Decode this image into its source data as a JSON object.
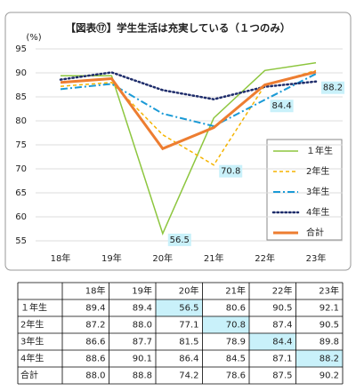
{
  "chart_data": {
    "type": "line",
    "title": "【図表⑰】学生生活は充実している（１つのみ）",
    "y_label": "(%)",
    "categories": [
      "18年",
      "19年",
      "20年",
      "21年",
      "22年",
      "23年"
    ],
    "ylim": [
      53,
      95
    ],
    "yticks": [
      55,
      60,
      65,
      70,
      75,
      80,
      85,
      90,
      95
    ],
    "grid": true,
    "legend": "right",
    "series": [
      {
        "name": "１年生",
        "color": "#8dc63f",
        "dash": "solid",
        "width": 1.5,
        "values": [
          89.4,
          89.4,
          56.5,
          80.6,
          90.5,
          92.1
        ],
        "value_labels": [
          null,
          null,
          "56.5",
          null,
          null,
          null
        ]
      },
      {
        "name": "2年生",
        "color": "#f5b400",
        "dash": "dashed",
        "width": 1.5,
        "values": [
          87.2,
          88.0,
          77.1,
          70.8,
          87.4,
          90.5
        ],
        "value_labels": [
          null,
          null,
          null,
          "70.8",
          null,
          null
        ]
      },
      {
        "name": "3年生",
        "color": "#1a9ad6",
        "dash": "dashdot",
        "width": 2,
        "values": [
          86.6,
          87.7,
          81.5,
          78.9,
          84.4,
          89.8
        ],
        "value_labels": [
          null,
          null,
          null,
          null,
          "84.4",
          null
        ]
      },
      {
        "name": "4年生",
        "color": "#1f2d6b",
        "dash": "dotted",
        "width": 2.5,
        "values": [
          88.6,
          90.1,
          86.4,
          84.5,
          87.1,
          88.2
        ],
        "value_labels": [
          null,
          null,
          null,
          null,
          null,
          "88.2"
        ]
      },
      {
        "name": "合計",
        "color": "#ed7d31",
        "dash": "solid",
        "width": 3,
        "values": [
          88.0,
          88.8,
          74.2,
          78.6,
          87.5,
          90.2
        ],
        "value_labels": [
          null,
          null,
          null,
          null,
          null,
          null
        ]
      }
    ]
  },
  "table": {
    "header": [
      "18年",
      "19年",
      "20年",
      "21年",
      "22年",
      "23年"
    ],
    "rows": [
      {
        "label": "１年生",
        "cells": [
          "89.4",
          "89.4",
          "56.5",
          "80.6",
          "90.5",
          "92.1"
        ]
      },
      {
        "label": "2年生",
        "cells": [
          "87.2",
          "88.0",
          "77.1",
          "70.8",
          "87.4",
          "90.5"
        ]
      },
      {
        "label": "3年生",
        "cells": [
          "86.6",
          "87.7",
          "81.5",
          "78.9",
          "84.4",
          "89.8"
        ]
      },
      {
        "label": "4年生",
        "cells": [
          "88.6",
          "90.1",
          "86.4",
          "84.5",
          "87.1",
          "88.2"
        ]
      },
      {
        "label": "合計",
        "cells": [
          "88.0",
          "88.8",
          "74.2",
          "78.6",
          "87.5",
          "90.2"
        ]
      }
    ]
  }
}
